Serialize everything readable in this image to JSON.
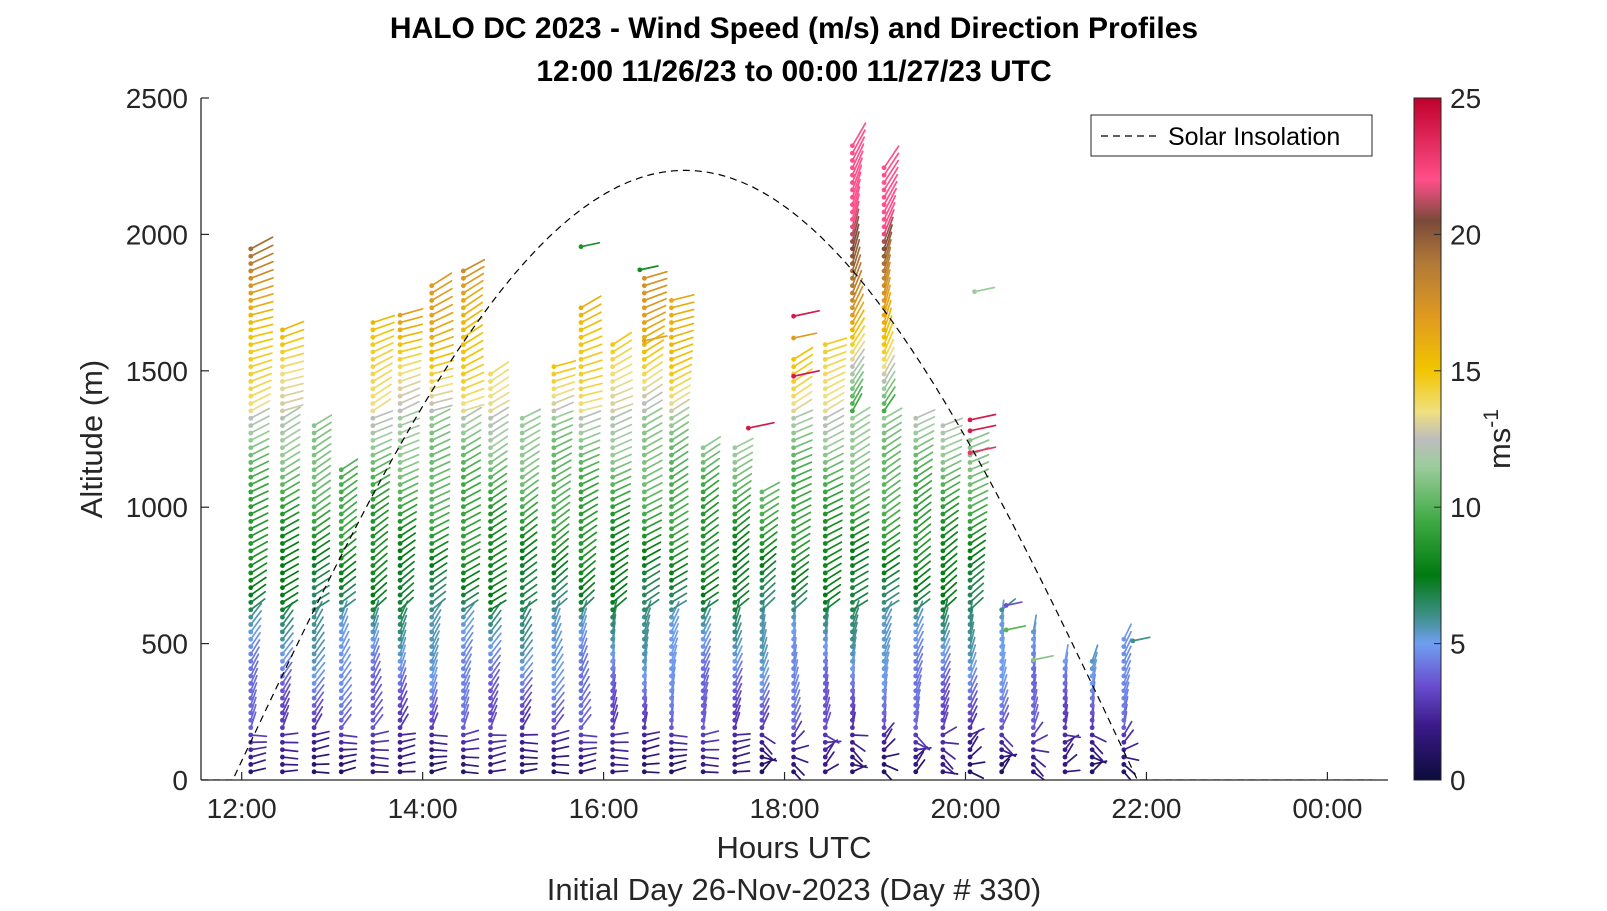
{
  "chart_data": {
    "type": "wind-barb-profile",
    "title": "HALO DC 2023 - Wind Speed (m/s) and Direction Profiles",
    "subtitle": "12:00 11/26/23 to 00:00 11/27/23  UTC",
    "xlabel": "Hours UTC",
    "xlabel2": "Initial Day 26-Nov-2023 (Day # 330)",
    "ylabel": "Altitude (m)",
    "xlim": [
      11.55,
      24.67
    ],
    "ylim": [
      0,
      2500
    ],
    "x_ticks": [
      {
        "value": 12,
        "label": "12:00"
      },
      {
        "value": 14,
        "label": "14:00"
      },
      {
        "value": 16,
        "label": "16:00"
      },
      {
        "value": 18,
        "label": "18:00"
      },
      {
        "value": 20,
        "label": "20:00"
      },
      {
        "value": 22,
        "label": "22:00"
      },
      {
        "value": 24,
        "label": "00:00"
      }
    ],
    "y_ticks": [
      0,
      500,
      1000,
      1500,
      2000,
      2500
    ],
    "colorbar": {
      "label_base": "ms",
      "label_exp": "-1",
      "range": [
        0,
        25
      ],
      "ticks": [
        0,
        5,
        10,
        15,
        20,
        25
      ],
      "stops": [
        {
          "v": 0,
          "color": "#0b0b3b"
        },
        {
          "v": 2,
          "color": "#3b1a8a"
        },
        {
          "v": 3.5,
          "color": "#6a4fd0"
        },
        {
          "v": 5,
          "color": "#6f9ff0"
        },
        {
          "v": 6,
          "color": "#3f8f8a"
        },
        {
          "v": 7.5,
          "color": "#007a10"
        },
        {
          "v": 9.5,
          "color": "#3faa44"
        },
        {
          "v": 11.5,
          "color": "#9ccc9c"
        },
        {
          "v": 12.5,
          "color": "#bdbdbd"
        },
        {
          "v": 13.5,
          "color": "#f0e080"
        },
        {
          "v": 15,
          "color": "#f2c500"
        },
        {
          "v": 17,
          "color": "#e09a20"
        },
        {
          "v": 19,
          "color": "#b07838"
        },
        {
          "v": 20.5,
          "color": "#7a4a3a"
        },
        {
          "v": 22,
          "color": "#ff4f8a"
        },
        {
          "v": 25,
          "color": "#c0002a"
        }
      ]
    },
    "legend": {
      "label": "Solar Insolation",
      "position": "top-right",
      "style": "dashed black"
    },
    "solar_insolation": {
      "sunrise": 11.9,
      "sunset": 21.9,
      "peak_altitude": 2235,
      "baseline": 0,
      "x_end": 24.5
    },
    "profiles": {
      "times": [
        12.1,
        12.45,
        12.8,
        13.1,
        13.45,
        13.75,
        14.1,
        14.45,
        14.75,
        15.1,
        15.45,
        15.75,
        16.1,
        16.45,
        16.75,
        17.1,
        17.45,
        17.75,
        18.1,
        18.45,
        18.75,
        19.1,
        19.45,
        19.75,
        20.05,
        20.4,
        20.75,
        21.1,
        21.4,
        21.75
      ],
      "top_altitude": [
        1950,
        1660,
        1320,
        1160,
        1700,
        1720,
        1830,
        1880,
        1500,
        1340,
        1520,
        1740,
        1610,
        1860,
        1760,
        1240,
        1230,
        1070,
        1550,
        1600,
        2350,
        2250,
        1330,
        1300,
        1250,
        650,
        560,
        450,
        440,
        520
      ],
      "regime_heights": {
        "surface_layer": 180,
        "blue_layer": 600,
        "green_layer": 1350
      },
      "barb_spacing_m": 27,
      "isolated_barbs": [
        {
          "t": 15.75,
          "alt": 1955,
          "speed": 8.5
        },
        {
          "t": 16.4,
          "alt": 1870,
          "speed": 8.2
        },
        {
          "t": 16.45,
          "alt": 1610,
          "speed": 16.5
        },
        {
          "t": 17.6,
          "alt": 1290,
          "speed": 24
        },
        {
          "t": 18.1,
          "alt": 1700,
          "speed": 24
        },
        {
          "t": 18.1,
          "alt": 1620,
          "speed": 17
        },
        {
          "t": 18.1,
          "alt": 1480,
          "speed": 24
        },
        {
          "t": 20.1,
          "alt": 1790,
          "speed": 11.5
        },
        {
          "t": 20.05,
          "alt": 1320,
          "speed": 24
        },
        {
          "t": 20.05,
          "alt": 1280,
          "speed": 24
        },
        {
          "t": 20.05,
          "alt": 1200,
          "speed": 23
        },
        {
          "t": 20.45,
          "alt": 640,
          "speed": 3.5
        },
        {
          "t": 20.45,
          "alt": 550,
          "speed": 10
        },
        {
          "t": 20.75,
          "alt": 440,
          "speed": 11
        },
        {
          "t": 21.85,
          "alt": 510,
          "speed": 6
        }
      ]
    }
  }
}
